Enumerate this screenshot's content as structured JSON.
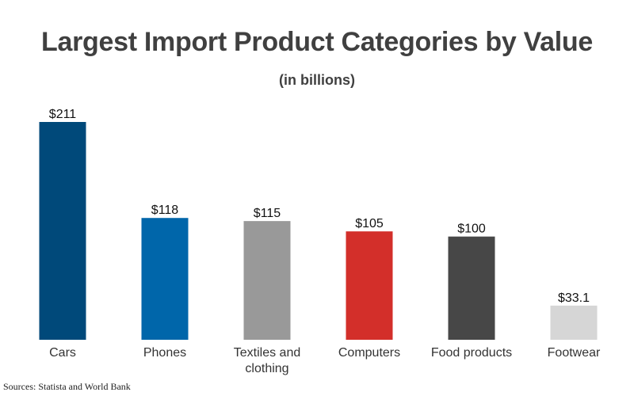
{
  "chart_data": {
    "type": "bar",
    "title": "Largest Import Product Categories by Value",
    "subtitle": "(in billions)",
    "categories": [
      "Cars",
      "Phones",
      "Textiles and clothing",
      "Computers",
      "Food products",
      "Footwear"
    ],
    "category_lines": [
      [
        "Cars"
      ],
      [
        "Phones"
      ],
      [
        "Textiles and",
        "clothing"
      ],
      [
        "Computers"
      ],
      [
        "Food products"
      ],
      [
        "Footwear"
      ]
    ],
    "values": [
      211,
      118,
      115,
      105,
      100,
      33.1
    ],
    "value_labels": [
      "$211",
      "$118",
      "$115",
      "$105",
      "$100",
      "$33.1"
    ],
    "colors": [
      "#00497a",
      "#0066aa",
      "#999999",
      "#d32f2a",
      "#474747",
      "#d6d6d6"
    ],
    "ylim": [
      0,
      211
    ],
    "grid": false,
    "legend": "none"
  },
  "source": "Sources: Statista and World Bank"
}
